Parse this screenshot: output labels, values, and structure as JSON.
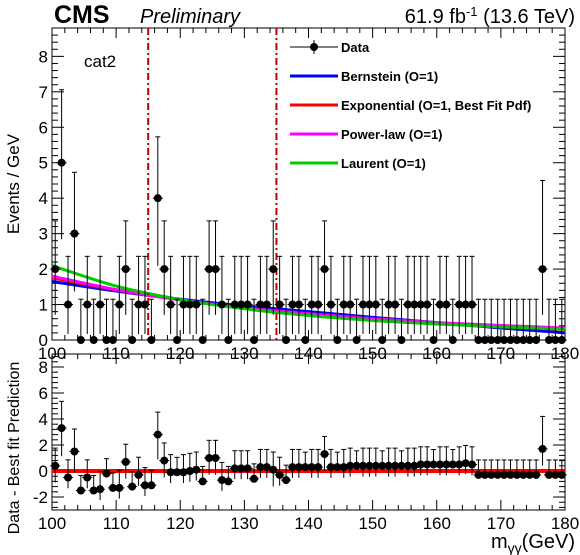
{
  "header": {
    "experiment": "CMS",
    "status": "Preliminary",
    "luminosity_main": "61.9 fb",
    "luminosity_exp": "-1",
    "energy": " (13.6 TeV)"
  },
  "category_label": "cat2",
  "axis_labels": {
    "top_y": "Events / GeV",
    "bottom_y": "Data - Best fit Prediction",
    "x_main": "m",
    "x_sub": "γγ",
    "x_unit": "(GeV)"
  },
  "legend": [
    {
      "label": "Data",
      "kind": "marker",
      "color": "#000000"
    },
    {
      "label": "Bernstein (O=1)",
      "kind": "line",
      "color": "#0000ff"
    },
    {
      "label": "Exponential (O=1, Best Fit Pdf)",
      "kind": "line",
      "color": "#ff0000"
    },
    {
      "label": "Power-law (O=1)",
      "kind": "line",
      "color": "#ff00ff"
    },
    {
      "label": "Laurent (O=1)",
      "kind": "line",
      "color": "#00cc00"
    }
  ],
  "chart_data": [
    {
      "type": "scatter",
      "panel": "top",
      "xlim": [
        100,
        180
      ],
      "ylim": [
        0,
        8.8
      ],
      "x_ticks": [
        100,
        110,
        120,
        130,
        140,
        150,
        160,
        170,
        180
      ],
      "y_ticks": [
        0,
        1,
        2,
        3,
        4,
        5,
        6,
        7,
        8
      ],
      "signal_window_lines": [
        115,
        135
      ],
      "data_x": [
        100.5,
        101.5,
        102.5,
        103.5,
        104.5,
        105.5,
        106.5,
        107.5,
        108.5,
        109.5,
        110.5,
        111.5,
        112.5,
        113.5,
        114.5,
        115.5,
        116.5,
        117.5,
        118.5,
        119.5,
        120.5,
        121.5,
        122.5,
        123.5,
        124.5,
        125.5,
        126.5,
        127.5,
        128.5,
        129.5,
        130.5,
        131.5,
        132.5,
        133.5,
        134.5,
        135.5,
        136.5,
        137.5,
        138.5,
        139.5,
        140.5,
        141.5,
        142.5,
        143.5,
        144.5,
        145.5,
        146.5,
        147.5,
        148.5,
        149.5,
        150.5,
        151.5,
        152.5,
        153.5,
        154.5,
        155.5,
        156.5,
        157.5,
        158.5,
        159.5,
        160.5,
        161.5,
        162.5,
        163.5,
        164.5,
        165.5,
        166.5,
        167.5,
        168.5,
        169.5,
        170.5,
        171.5,
        172.5,
        173.5,
        174.5,
        175.5,
        176.5,
        177.5,
        178.5,
        179.5
      ],
      "data_y": [
        2,
        5,
        1,
        3,
        0,
        1,
        0,
        1,
        0,
        0,
        1,
        2,
        0,
        1,
        1,
        0,
        4,
        2,
        1,
        0,
        1,
        1,
        1,
        0,
        2,
        2,
        1,
        0,
        1,
        1,
        1,
        0,
        1,
        1,
        2,
        1,
        0,
        1,
        1,
        0,
        1,
        1,
        2,
        1,
        0,
        1,
        1,
        0,
        1,
        1,
        1,
        0,
        1,
        1,
        0,
        1,
        1,
        1,
        1,
        0,
        1,
        1,
        0,
        1,
        1,
        1,
        0,
        0,
        0,
        0,
        0,
        0,
        0,
        0,
        0,
        0,
        2,
        0,
        0,
        0
      ],
      "error_up": [
        1.36,
        2.06,
        1.36,
        1.73,
        1.15,
        1.36,
        1.15,
        1.36,
        1.15,
        1.15,
        1.36,
        1.36,
        1.15,
        1.36,
        1.36,
        1.15,
        1.73,
        1.36,
        1.36,
        1.15,
        1.36,
        1.36,
        1.36,
        1.15,
        1.36,
        1.36,
        1.36,
        1.15,
        1.36,
        1.36,
        1.36,
        1.15,
        1.36,
        1.36,
        1.36,
        1.36,
        1.15,
        1.36,
        1.36,
        1.15,
        1.36,
        1.36,
        1.36,
        1.36,
        1.15,
        1.36,
        1.36,
        1.15,
        1.36,
        1.36,
        1.36,
        1.15,
        1.36,
        1.36,
        1.15,
        1.36,
        1.36,
        1.36,
        1.36,
        1.15,
        1.36,
        1.36,
        1.15,
        1.36,
        1.36,
        1.36,
        1.15,
        1.15,
        1.15,
        1.15,
        1.15,
        1.15,
        1.15,
        1.15,
        1.15,
        1.15,
        2.5,
        1.15,
        1.15,
        1.15
      ],
      "error_down": [
        1.29,
        2.16,
        0.83,
        1.63,
        0,
        0.83,
        0,
        0.83,
        0,
        0,
        0.83,
        1.29,
        0,
        0.83,
        0.83,
        0,
        1.91,
        1.29,
        0.83,
        0,
        0.83,
        0.83,
        0.83,
        0,
        1.29,
        1.29,
        0.83,
        0,
        0.83,
        0.83,
        0.83,
        0,
        0.83,
        0.83,
        1.29,
        0.83,
        0,
        0.83,
        0.83,
        0,
        0.83,
        0.83,
        1.29,
        0.83,
        0,
        0.83,
        0.83,
        0,
        0.83,
        0.83,
        0.83,
        0,
        0.83,
        0.83,
        0,
        0.83,
        0.83,
        0.83,
        0.83,
        0,
        0.83,
        0.83,
        0,
        0.83,
        0.83,
        0.83,
        0,
        0,
        0,
        0,
        0,
        0,
        0,
        0,
        0,
        0,
        1.29,
        0,
        0,
        0
      ],
      "series": [
        {
          "name": "Bernstein (O=1)",
          "color": "#0000ff",
          "x": [
            100,
            110,
            120,
            130,
            140,
            150,
            160,
            170,
            180
          ],
          "y": [
            1.65,
            1.38,
            1.15,
            0.96,
            0.8,
            0.64,
            0.49,
            0.34,
            0.2
          ]
        },
        {
          "name": "Exponential (O=1, Best Fit Pdf)",
          "color": "#ff0000",
          "x": [
            100,
            110,
            120,
            130,
            140,
            150,
            160,
            170,
            180
          ],
          "y": [
            1.75,
            1.41,
            1.13,
            0.91,
            0.73,
            0.58,
            0.47,
            0.38,
            0.3
          ]
        },
        {
          "name": "Power-law (O=1)",
          "color": "#ff00ff",
          "x": [
            100,
            110,
            120,
            130,
            140,
            150,
            160,
            170,
            180
          ],
          "y": [
            1.8,
            1.42,
            1.13,
            0.91,
            0.74,
            0.6,
            0.49,
            0.41,
            0.34
          ]
        },
        {
          "name": "Laurent (O=1)",
          "color": "#00cc00",
          "x": [
            100,
            110,
            120,
            130,
            140,
            150,
            160,
            170,
            180
          ],
          "y": [
            2.1,
            1.52,
            1.14,
            0.88,
            0.69,
            0.55,
            0.45,
            0.37,
            0.31
          ]
        }
      ]
    },
    {
      "type": "scatter",
      "panel": "bottom",
      "xlim": [
        100,
        180
      ],
      "ylim": [
        -3,
        9
      ],
      "x_ticks": [
        100,
        110,
        120,
        130,
        140,
        150,
        160,
        170,
        180
      ],
      "y_ticks": [
        -2,
        0,
        2,
        4,
        6,
        8
      ],
      "reference_line": {
        "y": 0,
        "color": "#ff0000"
      },
      "data_x": [
        100.5,
        101.5,
        102.5,
        103.5,
        104.5,
        105.5,
        106.5,
        107.5,
        108.5,
        109.5,
        110.5,
        111.5,
        112.5,
        113.5,
        114.5,
        115.5,
        116.5,
        117.5,
        118.5,
        119.5,
        120.5,
        121.5,
        122.5,
        123.5,
        124.5,
        125.5,
        126.5,
        127.5,
        128.5,
        129.5,
        130.5,
        131.5,
        132.5,
        133.5,
        134.5,
        135.5,
        136.5,
        137.5,
        138.5,
        139.5,
        140.5,
        141.5,
        142.5,
        143.5,
        144.5,
        145.5,
        146.5,
        147.5,
        148.5,
        149.5,
        150.5,
        151.5,
        152.5,
        153.5,
        154.5,
        155.5,
        156.5,
        157.5,
        158.5,
        159.5,
        160.5,
        161.5,
        162.5,
        163.5,
        164.5,
        165.5,
        166.5,
        167.5,
        168.5,
        169.5,
        170.5,
        171.5,
        172.5,
        173.5,
        174.5,
        175.5,
        176.5,
        177.5,
        178.5,
        179.5
      ],
      "data_y": [
        0.4,
        3.3,
        -0.5,
        1.5,
        -1.5,
        -0.5,
        -1.5,
        -1.4,
        -0.2,
        -1.3,
        -1.3,
        0.7,
        -1.2,
        -0.3,
        -1.1,
        -1.1,
        2.8,
        0.8,
        -0.1,
        -0.1,
        -0.1,
        0.0,
        0.1,
        -0.8,
        1.0,
        1.0,
        -0.7,
        -0.8,
        0.2,
        0.2,
        0.2,
        -0.6,
        0.3,
        0.3,
        0.1,
        -0.3,
        -0.7,
        0.3,
        0.3,
        0.3,
        0.3,
        0.3,
        1.3,
        0.3,
        0.3,
        0.3,
        0.4,
        0.4,
        0.4,
        0.4,
        0.4,
        0.4,
        0.4,
        0.4,
        0.4,
        0.4,
        0.4,
        0.5,
        0.5,
        0.5,
        0.5,
        0.5,
        0.5,
        0.5,
        0.6,
        0.5,
        -0.3,
        -0.3,
        -0.3,
        -0.3,
        -0.3,
        -0.3,
        -0.3,
        -0.3,
        -0.3,
        -0.3,
        1.7,
        -0.3,
        -0.3,
        -0.3
      ],
      "error_up": [
        1.36,
        2.06,
        1.36,
        1.73,
        1.15,
        1.36,
        1.15,
        1.36,
        1.15,
        1.15,
        1.36,
        1.36,
        1.15,
        1.36,
        1.36,
        1.15,
        1.73,
        1.36,
        1.36,
        1.15,
        1.36,
        1.36,
        1.36,
        1.15,
        1.36,
        1.36,
        1.36,
        1.15,
        1.36,
        1.36,
        1.36,
        1.15,
        1.36,
        1.36,
        1.36,
        1.36,
        1.15,
        1.36,
        1.36,
        1.15,
        1.36,
        1.36,
        1.36,
        1.36,
        1.15,
        1.36,
        1.36,
        1.15,
        1.36,
        1.36,
        1.36,
        1.15,
        1.36,
        1.36,
        1.15,
        1.36,
        1.36,
        1.36,
        1.36,
        1.15,
        1.36,
        1.36,
        1.15,
        1.36,
        1.36,
        1.36,
        1.15,
        1.15,
        1.15,
        1.15,
        1.15,
        1.15,
        1.15,
        1.15,
        1.15,
        1.15,
        2.5,
        1.15,
        1.15,
        1.15
      ],
      "error_down": [
        1.29,
        2.16,
        0.83,
        1.63,
        0,
        0.83,
        0,
        0.83,
        0,
        0,
        0.83,
        1.29,
        0,
        0.83,
        0.83,
        0,
        1.91,
        1.29,
        0.83,
        0,
        0.83,
        0.83,
        0.83,
        0,
        1.29,
        1.29,
        0.83,
        0,
        0.83,
        0.83,
        0.83,
        0,
        0.83,
        0.83,
        1.29,
        0.83,
        0,
        0.83,
        0.83,
        0,
        0.83,
        0.83,
        1.29,
        0.83,
        0,
        0.83,
        0.83,
        0,
        0.83,
        0.83,
        0.83,
        0,
        0.83,
        0.83,
        0,
        0.83,
        0.83,
        0.83,
        0.83,
        0,
        0.83,
        0.83,
        0,
        0.83,
        0.83,
        0.83,
        0,
        0,
        0,
        0,
        0,
        0,
        0,
        0,
        0,
        0,
        1.29,
        0,
        0,
        0
      ]
    }
  ]
}
